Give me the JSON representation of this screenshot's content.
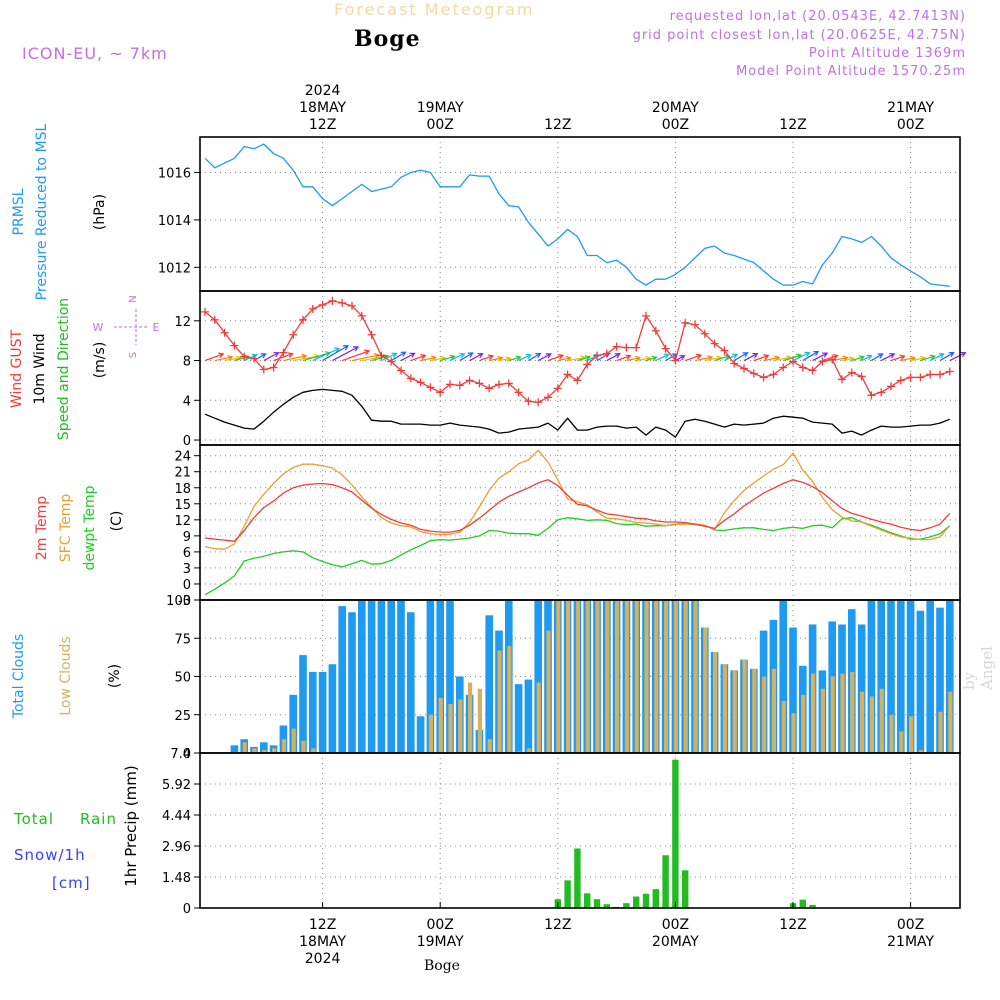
{
  "header": {
    "product": "Forecast Meteogram",
    "location": "Boge",
    "model": "ICON-EU, ~ 7km",
    "requested": "requested lon,lat (20.0543E, 42.7413N)",
    "gridpoint": "grid point closest lon,lat (20.0625E, 42.75N)",
    "point_alt": "Point Altitude 1369m",
    "model_alt": "Model Point Altitude 1570.25m",
    "footer": "Boge",
    "credit": "by Angel"
  },
  "colors": {
    "pressure": "#1e9bf0",
    "gust": "#f03c3c",
    "wind": "#000000",
    "direction": "#22bb22",
    "temp": "#f03c3c",
    "sfc": "#e8a030",
    "dewpt": "#22cc22",
    "total_clouds": "#1e9bf0",
    "low_clouds": "#d4b060",
    "rain": "#22bb22",
    "snow": "#3344ee",
    "accent_violet": "#c070e0",
    "grid": "#888888"
  },
  "time_axis": {
    "top_labels": [
      {
        "t": 12,
        "lines": [
          "2024",
          "18MAY",
          "12Z"
        ]
      },
      {
        "t": 24,
        "lines": [
          "19MAY",
          "00Z"
        ]
      },
      {
        "t": 36,
        "lines": [
          "12Z"
        ]
      },
      {
        "t": 48,
        "lines": [
          "20MAY",
          "00Z"
        ]
      },
      {
        "t": 60,
        "lines": [
          "12Z"
        ]
      },
      {
        "t": 72,
        "lines": [
          "21MAY",
          "00Z"
        ]
      }
    ],
    "bottom_labels": [
      {
        "t": 12,
        "lines": [
          "12Z",
          "18MAY",
          "2024"
        ]
      },
      {
        "t": 24,
        "lines": [
          "00Z",
          "19MAY"
        ]
      },
      {
        "t": 36,
        "lines": [
          "12Z"
        ]
      },
      {
        "t": 48,
        "lines": [
          "00Z",
          "20MAY"
        ]
      },
      {
        "t": 60,
        "lines": [
          "12Z"
        ]
      },
      {
        "t": 72,
        "lines": [
          "00Z",
          "21MAY"
        ]
      }
    ]
  },
  "panels": {
    "pressure": {
      "labels": [
        "PRMSL",
        "Pressure Reduced to MSL"
      ],
      "unit": "(hPa)",
      "ticks": [
        "1012",
        "1014",
        "1016"
      ]
    },
    "wind": {
      "labels": [
        "Wind GUST",
        "10m Wind",
        "Speed and Direction"
      ],
      "unit": "(m/s)",
      "ticks": [
        "0",
        "4",
        "8",
        "12"
      ],
      "compass": [
        "N",
        "W",
        "E",
        "S"
      ]
    },
    "temp": {
      "labels": [
        "2m Temp",
        "SFC Temp",
        "dewpt Temp"
      ],
      "unit": "(C)",
      "ticks": [
        "-3",
        "0",
        "3",
        "6",
        "9",
        "12",
        "15",
        "18",
        "21",
        "24"
      ]
    },
    "clouds": {
      "labels": [
        "Total Clouds",
        "Low Clouds"
      ],
      "unit": "(%)",
      "ticks": [
        "0",
        "25",
        "50",
        "75",
        "100"
      ]
    },
    "precip": {
      "labels": [
        "Total",
        "Rain",
        "Snow/1h",
        "[cm]"
      ],
      "unit": "1hr Precip (mm)",
      "ticks": [
        "0",
        "1.48",
        "2.96",
        "4.44",
        "5.92",
        "7.4"
      ]
    }
  },
  "chart_data": [
    {
      "type": "line",
      "title": "PRMSL Pressure Reduced to MSL",
      "ylabel": "(hPa)",
      "ylim": [
        1011,
        1017.5
      ],
      "x": [
        0,
        1,
        2,
        3,
        4,
        5,
        6,
        7,
        8,
        9,
        10,
        11,
        12,
        13,
        14,
        15,
        16,
        17,
        18,
        19,
        20,
        21,
        22,
        23,
        24,
        25,
        26,
        27,
        28,
        29,
        30,
        31,
        32,
        33,
        34,
        35,
        36,
        37,
        38,
        39,
        40,
        41,
        42,
        43,
        44,
        45,
        46,
        47,
        48,
        49,
        50,
        51,
        52,
        53,
        54,
        55,
        56,
        57,
        58,
        59,
        60,
        61,
        62,
        63,
        64,
        65,
        66,
        67,
        68,
        69,
        70,
        71,
        72,
        73,
        74,
        75,
        76
      ],
      "series": [
        {
          "name": "PRMSL",
          "values": [
            1016.6,
            1016.2,
            1016.4,
            1016.6,
            1017.1,
            1017.0,
            1017.2,
            1016.8,
            1016.6,
            1016.1,
            1015.4,
            1015.4,
            1014.9,
            1014.6,
            1014.9,
            1015.2,
            1015.5,
            1015.2,
            1015.3,
            1015.4,
            1015.8,
            1016.0,
            1016.1,
            1016.0,
            1015.4,
            1015.4,
            1015.4,
            1015.9,
            1015.85,
            1015.85,
            1015.1,
            1014.6,
            1014.55,
            1013.9,
            1013.4,
            1012.9,
            1013.2,
            1013.6,
            1013.3,
            1012.5,
            1012.5,
            1012.2,
            1012.3,
            1012.0,
            1011.5,
            1011.25,
            1011.5,
            1011.5,
            1011.7,
            1012.0,
            1012.4,
            1012.8,
            1012.9,
            1012.6,
            1012.5,
            1012.35,
            1012.2,
            1011.85,
            1011.5,
            1011.25,
            1011.25,
            1011.4,
            1011.3,
            1012.1,
            1012.6,
            1013.3,
            1013.2,
            1013.05,
            1013.3,
            1012.9,
            1012.4,
            1012.1,
            1011.85,
            1011.6,
            1011.3,
            1011.25,
            1011.2
          ]
        }
      ]
    },
    {
      "type": "line",
      "title": "Wind GUST / 10m Wind",
      "ylabel": "(m/s)",
      "ylim": [
        -0.5,
        15
      ],
      "x": [
        0,
        1,
        2,
        3,
        4,
        5,
        6,
        7,
        8,
        9,
        10,
        11,
        12,
        13,
        14,
        15,
        16,
        17,
        18,
        19,
        20,
        21,
        22,
        23,
        24,
        25,
        26,
        27,
        28,
        29,
        30,
        31,
        32,
        33,
        34,
        35,
        36,
        37,
        38,
        39,
        40,
        41,
        42,
        43,
        44,
        45,
        46,
        47,
        48,
        49,
        50,
        51,
        52,
        53,
        54,
        55,
        56,
        57,
        58,
        59,
        60,
        61,
        62,
        63,
        64,
        65,
        66,
        67,
        68,
        69,
        70,
        71,
        72,
        73,
        74,
        75,
        76
      ],
      "series": [
        {
          "name": "Wind GUST",
          "values": [
            12.9,
            12.1,
            10.8,
            9.5,
            8.4,
            8.2,
            7.1,
            7.3,
            8.8,
            10.6,
            12.1,
            13.2,
            13.6,
            14.0,
            13.8,
            13.5,
            12.5,
            10.6,
            8.5,
            7.9,
            7.0,
            6.2,
            5.8,
            5.3,
            4.8,
            5.6,
            5.5,
            6.0,
            5.7,
            5.2,
            5.6,
            5.7,
            4.8,
            3.9,
            3.8,
            4.3,
            5.2,
            6.6,
            6.0,
            7.6,
            8.5,
            8.7,
            9.4,
            9.3,
            9.3,
            12.5,
            11.0,
            9.2,
            8.0,
            11.8,
            11.6,
            10.7,
            9.7,
            9.0,
            7.7,
            7.2,
            6.7,
            6.3,
            6.6,
            7.3,
            7.9,
            7.3,
            7.0,
            7.9,
            8.1,
            6.1,
            6.8,
            6.4,
            4.5,
            4.8,
            5.4,
            6.0,
            6.3,
            6.3,
            6.6,
            6.6,
            6.9
          ]
        },
        {
          "name": "10m Wind",
          "values": [
            2.6,
            2.2,
            1.8,
            1.5,
            1.2,
            1.1,
            1.9,
            2.8,
            3.6,
            4.3,
            4.8,
            5.0,
            5.1,
            5.0,
            4.9,
            4.5,
            3.4,
            2.0,
            1.9,
            1.9,
            1.6,
            1.6,
            1.6,
            1.5,
            1.5,
            1.7,
            1.5,
            1.4,
            1.3,
            1.1,
            0.7,
            0.8,
            1.1,
            1.2,
            1.3,
            1.7,
            1.0,
            2.2,
            1.0,
            1.0,
            1.3,
            1.4,
            1.4,
            1.2,
            1.3,
            0.5,
            1.3,
            1.0,
            0.3,
            1.9,
            2.1,
            1.9,
            1.6,
            1.3,
            1.6,
            1.5,
            1.6,
            1.7,
            2.2,
            2.4,
            2.3,
            2.2,
            1.8,
            1.7,
            1.6,
            0.7,
            0.9,
            0.5,
            1.0,
            1.4,
            1.3,
            1.3,
            1.4,
            1.5,
            1.5,
            1.7,
            2.1
          ]
        }
      ]
    },
    {
      "type": "line",
      "title": "2m Temp / SFC Temp / dewpt Temp",
      "ylabel": "(C)",
      "ylim": [
        -3,
        26
      ],
      "x": [
        0,
        1,
        2,
        3,
        4,
        5,
        6,
        7,
        8,
        9,
        10,
        11,
        12,
        13,
        14,
        15,
        16,
        17,
        18,
        19,
        20,
        21,
        22,
        23,
        24,
        25,
        26,
        27,
        28,
        29,
        30,
        31,
        32,
        33,
        34,
        35,
        36,
        37,
        38,
        39,
        40,
        41,
        42,
        43,
        44,
        45,
        46,
        47,
        48,
        49,
        50,
        51,
        52,
        53,
        54,
        55,
        56,
        57,
        58,
        59,
        60,
        61,
        62,
        63,
        64,
        65,
        66,
        67,
        68,
        69,
        70,
        71,
        72,
        73,
        74,
        75,
        76
      ],
      "series": [
        {
          "name": "2m Temp",
          "values": [
            8.6,
            8.4,
            8.2,
            8.0,
            10.0,
            12.4,
            14.3,
            15.5,
            17.0,
            18.0,
            18.5,
            18.7,
            18.8,
            18.6,
            18.0,
            17.2,
            15.7,
            14.2,
            13.0,
            12.1,
            11.4,
            11.0,
            10.2,
            9.9,
            9.7,
            9.7,
            10.0,
            11.0,
            12.3,
            13.8,
            15.3,
            16.4,
            17.2,
            18.0,
            18.9,
            19.5,
            18.4,
            16.6,
            14.9,
            14.6,
            13.8,
            13.1,
            12.9,
            12.6,
            12.3,
            12.2,
            11.8,
            11.6,
            11.6,
            11.5,
            11.2,
            10.8,
            10.4,
            11.9,
            13.1,
            14.6,
            15.8,
            17.0,
            17.9,
            18.8,
            19.5,
            19.0,
            18.2,
            17.1,
            15.6,
            14.1,
            13.2,
            12.7,
            12.1,
            11.6,
            11.2,
            10.6,
            10.2,
            10.0,
            10.5,
            11.2,
            13.2
          ]
        },
        {
          "name": "SFC Temp",
          "values": [
            7.0,
            6.6,
            6.5,
            7.5,
            10.8,
            14.5,
            16.8,
            18.8,
            20.6,
            21.8,
            22.4,
            22.4,
            22.1,
            21.7,
            20.4,
            18.5,
            16.3,
            14.3,
            12.4,
            11.4,
            10.9,
            10.7,
            9.8,
            9.4,
            9.2,
            9.3,
            9.7,
            11.5,
            14.4,
            17.5,
            19.8,
            21.0,
            22.5,
            23.2,
            25.0,
            22.8,
            19.5,
            15.9,
            15.4,
            14.8,
            13.5,
            12.3,
            12.2,
            11.9,
            11.5,
            11.4,
            11.2,
            10.9,
            11.1,
            11.2,
            11.2,
            11.0,
            10.2,
            13.3,
            15.6,
            17.5,
            18.9,
            20.2,
            21.5,
            22.3,
            24.5,
            21.3,
            19.2,
            16.2,
            13.9,
            12.5,
            11.8,
            11.6,
            10.8,
            10.1,
            9.4,
            8.8,
            8.6,
            8.3,
            8.3,
            8.8,
            10.9
          ]
        },
        {
          "name": "dewpt Temp",
          "values": [
            -2.0,
            -1.0,
            0.2,
            1.5,
            4.3,
            4.8,
            5.2,
            5.7,
            6.0,
            6.2,
            6.0,
            4.9,
            4.2,
            3.6,
            3.2,
            3.8,
            4.4,
            3.7,
            3.8,
            4.4,
            5.4,
            6.4,
            7.2,
            8.1,
            8.3,
            8.2,
            8.4,
            8.6,
            9.0,
            10.0,
            9.9,
            9.5,
            9.4,
            9.4,
            9.1,
            10.4,
            12.0,
            12.4,
            12.2,
            11.9,
            12.0,
            11.9,
            11.3,
            11.1,
            11.2,
            10.8,
            10.9,
            10.9,
            11.2,
            11.3,
            11.1,
            11.0,
            10.1,
            10.0,
            10.3,
            10.5,
            10.5,
            10.2,
            10.0,
            10.4,
            10.6,
            10.4,
            10.9,
            11.0,
            10.5,
            12.2,
            12.4,
            11.6,
            11.0,
            10.3,
            9.6,
            9.0,
            8.4,
            8.4,
            8.8,
            9.4,
            10.9
          ]
        }
      ]
    },
    {
      "type": "bar",
      "title": "Total Clouds / Low Clouds",
      "ylabel": "(%)",
      "ylim": [
        0,
        100
      ],
      "x": [
        3,
        4,
        5,
        6,
        7,
        8,
        9,
        10,
        11,
        12,
        13,
        14,
        15,
        16,
        17,
        18,
        19,
        20,
        21,
        22,
        23,
        24,
        25,
        26,
        27,
        28,
        29,
        30,
        31,
        32,
        33,
        34,
        35,
        36,
        37,
        38,
        39,
        40,
        41,
        42,
        43,
        44,
        45,
        46,
        47,
        48,
        49,
        50,
        51,
        52,
        53,
        54,
        55,
        56,
        57,
        58,
        59,
        60,
        61,
        62,
        63,
        64,
        65,
        66,
        67,
        68,
        69,
        70,
        71,
        72,
        73,
        74,
        75,
        76
      ],
      "series": [
        {
          "name": "Total Clouds",
          "values": [
            5,
            9,
            4,
            7,
            5,
            18,
            38,
            64,
            53,
            53,
            58,
            96,
            92,
            100,
            100,
            100,
            100,
            100,
            92,
            24,
            100,
            100,
            100,
            50,
            38,
            15,
            90,
            80,
            100,
            45,
            48,
            100,
            100,
            100,
            100,
            100,
            100,
            100,
            100,
            100,
            100,
            100,
            100,
            100,
            100,
            100,
            100,
            100,
            82,
            66,
            58,
            54,
            61,
            55,
            80,
            87,
            100,
            82,
            57,
            84,
            54,
            86,
            84,
            94,
            84,
            100,
            100,
            100,
            100,
            100,
            93,
            100,
            95,
            100
          ]
        },
        {
          "name": "Low Clouds",
          "values": [
            0,
            7,
            3,
            2,
            3,
            9,
            16,
            8,
            3,
            0,
            0,
            0,
            0,
            0,
            0,
            0,
            0,
            0,
            0,
            0,
            25,
            36,
            32,
            35,
            46,
            42,
            9,
            67,
            70,
            1,
            3,
            46,
            80,
            100,
            100,
            100,
            100,
            100,
            100,
            100,
            100,
            100,
            100,
            100,
            100,
            100,
            100,
            100,
            82,
            66,
            58,
            54,
            61,
            55,
            50,
            55,
            34,
            26,
            38,
            52,
            42,
            50,
            52,
            53,
            40,
            37,
            42,
            25,
            14,
            24,
            2,
            0,
            27,
            40
          ]
        }
      ]
    },
    {
      "type": "bar",
      "title": "1hr Precip",
      "ylabel": "1hr Precip (mm)",
      "ylim": [
        0,
        7.4
      ],
      "x": [
        36,
        37,
        38,
        39,
        40,
        41,
        42,
        43,
        44,
        45,
        46,
        47,
        48,
        49,
        60,
        61,
        62,
        63
      ],
      "series": [
        {
          "name": "Total Rain",
          "values": [
            0.42,
            1.32,
            2.84,
            0.7,
            0.42,
            0.18,
            0.05,
            0.23,
            0.55,
            0.68,
            0.9,
            2.52,
            7.08,
            1.8,
            0.23,
            0.4,
            0.15,
            0.02
          ]
        }
      ]
    }
  ]
}
